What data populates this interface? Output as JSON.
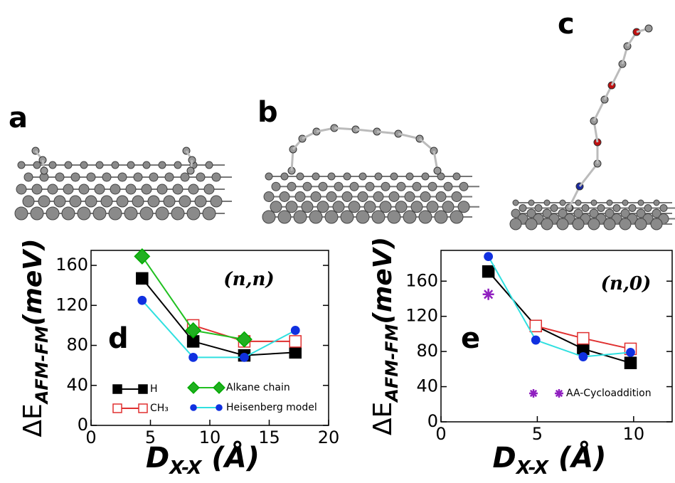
{
  "panel_labels": [
    "a",
    "b",
    "c"
  ],
  "chart_data": [
    {
      "type": "line",
      "panel": "d",
      "annotation": "(n,n)",
      "xlabel": "D",
      "xlabel_sub": "X-X",
      "xlabel_unit": "(Å)",
      "ylabel": "ΔE",
      "ylabel_sub": "AFM-FM",
      "ylabel_unit": "(meV)",
      "xlim": [
        0,
        20
      ],
      "xticks": [
        0,
        5,
        10,
        15,
        20
      ],
      "ylim": [
        0,
        175
      ],
      "yticks": [
        0,
        40,
        80,
        120,
        160
      ],
      "series": [
        {
          "name": "H",
          "color": "#000000",
          "marker": "square",
          "marker_color": "#000000",
          "x": [
            4.3,
            8.6,
            12.9,
            17.2
          ],
          "values": [
            147,
            84,
            70,
            73
          ]
        },
        {
          "name": "CH₃",
          "color": "#e03030",
          "marker": "open-square",
          "marker_color": "#e03030",
          "x": [
            8.6,
            12.9,
            17.2
          ],
          "values": [
            100,
            84,
            84
          ]
        },
        {
          "name": "Alkane chain",
          "color": "#20c020",
          "marker": "diamond",
          "marker_color": "#20b020",
          "x": [
            4.3,
            8.6,
            12.9
          ],
          "values": [
            169,
            95,
            86
          ]
        },
        {
          "name": "Heisenberg model",
          "color": "#30e0e0",
          "marker": "circle",
          "marker_color": "#1030e0",
          "x": [
            4.3,
            8.6,
            12.9,
            17.2
          ],
          "values": [
            125,
            68,
            68,
            95
          ]
        }
      ]
    },
    {
      "type": "line",
      "panel": "e",
      "annotation": "(n,0)",
      "xlabel": "D",
      "xlabel_sub": "X-X",
      "xlabel_unit": "(Å)",
      "ylabel": "ΔE",
      "ylabel_sub": "AFM-FM",
      "ylabel_unit": "(meV)",
      "xlim": [
        0,
        12
      ],
      "xticks": [
        0,
        5,
        10
      ],
      "ylim": [
        0,
        195
      ],
      "yticks": [
        0,
        40,
        80,
        120,
        160
      ],
      "series": [
        {
          "name": "H",
          "color": "#000000",
          "marker": "square",
          "marker_color": "#000000",
          "x": [
            2.46,
            4.92,
            7.38,
            9.84
          ],
          "values": [
            171,
            109,
            83,
            67
          ],
          "legend": false
        },
        {
          "name": "CH₃",
          "color": "#e03030",
          "marker": "open-square",
          "marker_color": "#e03030",
          "x": [
            4.92,
            7.38,
            9.84
          ],
          "values": [
            109,
            95,
            83
          ],
          "legend": false
        },
        {
          "name": "Heisenberg model",
          "color": "#30e0e0",
          "marker": "circle",
          "marker_color": "#1030e0",
          "x": [
            2.46,
            4.92,
            7.38,
            9.84
          ],
          "values": [
            188,
            93,
            74,
            79
          ],
          "legend": false
        },
        {
          "name": "AA-Cycloaddition",
          "color": "#9020c0",
          "marker": "star",
          "marker_color": "#9020c0",
          "x": [
            2.46
          ],
          "values": [
            145
          ],
          "line": false
        }
      ]
    }
  ]
}
